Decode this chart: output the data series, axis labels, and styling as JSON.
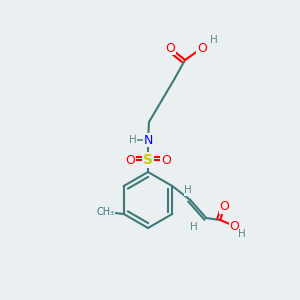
{
  "bg_color": "#eaeff1",
  "bond_color": "#3d7a7a",
  "bond_width": 1.5,
  "atom_colors": {
    "O": "#ff0000",
    "N": "#0000ff",
    "S": "#cccc00",
    "H": "#5a8a8a",
    "C_label": "#3d7a7a"
  },
  "font_size_atoms": 9,
  "font_size_small": 7.5
}
